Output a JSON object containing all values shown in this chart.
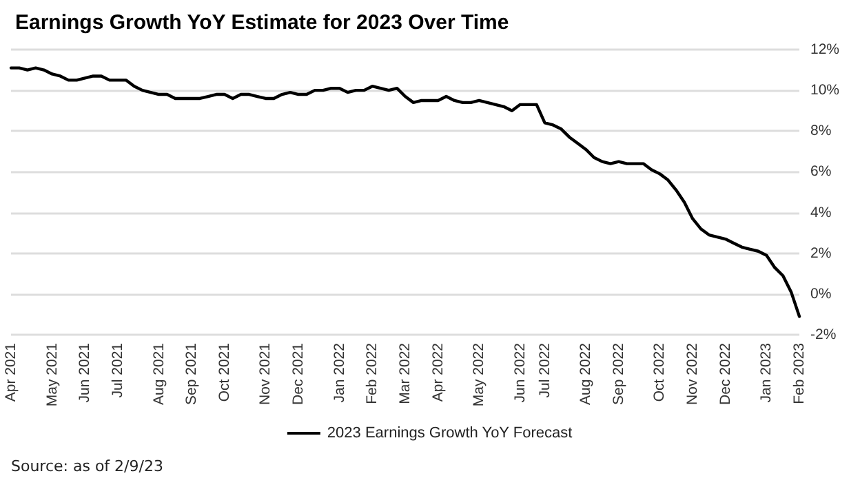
{
  "chart_data": {
    "type": "line",
    "title": "Earnings Growth YoY Estimate for 2023 Over Time",
    "categories": [
      "Apr 2021",
      null,
      null,
      null,
      null,
      "May 2021",
      null,
      null,
      null,
      "Jun 2021",
      null,
      null,
      null,
      "Jul 2021",
      null,
      null,
      null,
      null,
      "Aug 2021",
      null,
      null,
      null,
      "Sep 2021",
      null,
      null,
      null,
      "Oct 2021",
      null,
      null,
      null,
      null,
      "Nov 2021",
      null,
      null,
      null,
      "Dec 2021",
      null,
      null,
      null,
      null,
      "Jan 2022",
      null,
      null,
      null,
      "Feb 2022",
      null,
      null,
      null,
      "Mar 2022",
      null,
      null,
      null,
      "Apr 2022",
      null,
      null,
      null,
      null,
      "May 2022",
      null,
      null,
      null,
      null,
      "Jun 2022",
      null,
      null,
      "Jul 2022",
      null,
      null,
      null,
      null,
      "Aug 2022",
      null,
      null,
      null,
      "Sep 2022",
      null,
      null,
      null,
      null,
      "Oct 2022",
      null,
      null,
      null,
      "Nov 2022",
      null,
      null,
      null,
      "Dec 2022",
      null,
      null,
      null,
      null,
      "Jan 2023",
      null,
      null,
      null,
      "Feb 2023"
    ],
    "series": [
      {
        "name": "2023 Earnings Growth YoY Forecast",
        "color": "#000000",
        "values": [
          11.1,
          11.1,
          11.0,
          11.1,
          11.0,
          10.8,
          10.7,
          10.5,
          10.5,
          10.6,
          10.7,
          10.7,
          10.5,
          10.5,
          10.5,
          10.2,
          10.0,
          9.9,
          9.8,
          9.8,
          9.6,
          9.6,
          9.6,
          9.6,
          9.7,
          9.8,
          9.8,
          9.6,
          9.8,
          9.8,
          9.7,
          9.6,
          9.6,
          9.8,
          9.9,
          9.8,
          9.8,
          10.0,
          10.0,
          10.1,
          10.1,
          9.9,
          10.0,
          10.0,
          10.2,
          10.1,
          10.0,
          10.1,
          9.7,
          9.4,
          9.5,
          9.5,
          9.5,
          9.7,
          9.5,
          9.4,
          9.4,
          9.5,
          9.4,
          9.3,
          9.2,
          9.0,
          9.3,
          9.3,
          9.3,
          8.4,
          8.3,
          8.1,
          7.7,
          7.4,
          7.1,
          6.7,
          6.5,
          6.4,
          6.5,
          6.4,
          6.4,
          6.4,
          6.1,
          5.9,
          5.6,
          5.1,
          4.5,
          3.7,
          3.2,
          2.9,
          2.8,
          2.7,
          2.5,
          2.3,
          2.2,
          2.1,
          1.9,
          1.3,
          0.9,
          0.1,
          -1.1
        ]
      }
    ],
    "ylim": [
      -2,
      12
    ],
    "yticks": [
      {
        "value": -2,
        "label": "-2%"
      },
      {
        "value": 0,
        "label": "0%"
      },
      {
        "value": 2,
        "label": "2%"
      },
      {
        "value": 4,
        "label": "4%"
      },
      {
        "value": 6,
        "label": "6%"
      },
      {
        "value": 8,
        "label": "8%"
      },
      {
        "value": 10,
        "label": "10%"
      },
      {
        "value": 12,
        "label": "12%"
      }
    ],
    "grid": "y",
    "legend": "bottom",
    "marker": "none",
    "line_style": "solid",
    "annotations": [
      "Source: as of 2/9/23"
    ]
  }
}
